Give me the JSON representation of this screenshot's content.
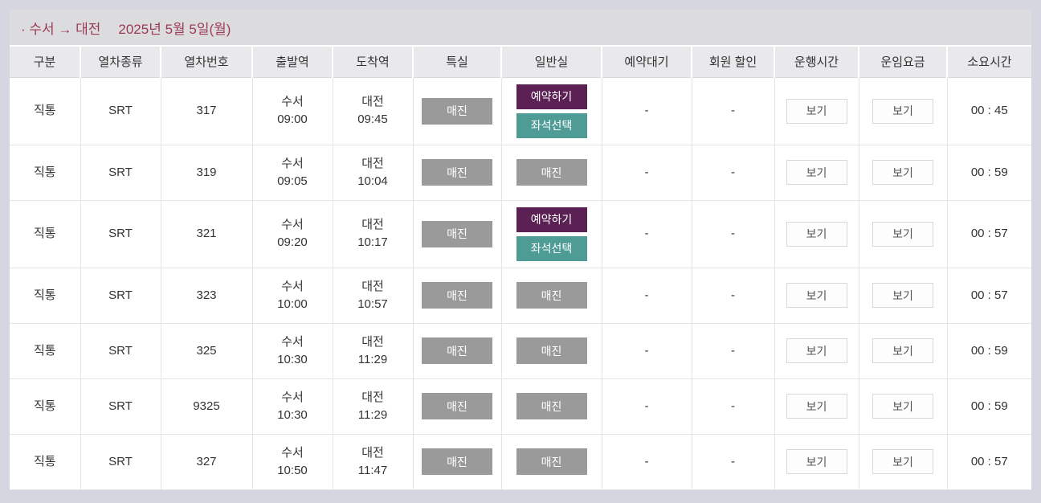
{
  "header": {
    "route": "· 수서 → 대전",
    "date": "2025년 5월 5일(월)"
  },
  "colors": {
    "title_text": "#9c3a56",
    "soldout_bg": "#9a9a9a",
    "reserve_bg": "#5c2154",
    "seat_select_bg": "#4f9b95",
    "page_bg": "#d5d6e0",
    "header_row_bg": "#e9e9ec"
  },
  "table": {
    "columns": [
      "구분",
      "열차종류",
      "열차번호",
      "출발역",
      "도착역",
      "특실",
      "일반실",
      "예약대기",
      "회원 할인",
      "운행시간",
      "운임요금",
      "소요시간"
    ],
    "buttons": {
      "soldout": "매진",
      "reserve": "예약하기",
      "seat_select": "좌석선택",
      "view": "보기"
    },
    "rows": [
      {
        "type": "직통",
        "train": "SRT",
        "number": "317",
        "dep_station": "수서",
        "dep_time": "09:00",
        "arr_station": "대전",
        "arr_time": "09:45",
        "special": [
          "soldout"
        ],
        "general": [
          "reserve",
          "seat_select"
        ],
        "wait": "-",
        "discount": "-",
        "duration": "00 : 45"
      },
      {
        "type": "직통",
        "train": "SRT",
        "number": "319",
        "dep_station": "수서",
        "dep_time": "09:05",
        "arr_station": "대전",
        "arr_time": "10:04",
        "special": [
          "soldout"
        ],
        "general": [
          "soldout"
        ],
        "wait": "-",
        "discount": "-",
        "duration": "00 : 59"
      },
      {
        "type": "직통",
        "train": "SRT",
        "number": "321",
        "dep_station": "수서",
        "dep_time": "09:20",
        "arr_station": "대전",
        "arr_time": "10:17",
        "special": [
          "soldout"
        ],
        "general": [
          "reserve",
          "seat_select"
        ],
        "wait": "-",
        "discount": "-",
        "duration": "00 : 57"
      },
      {
        "type": "직통",
        "train": "SRT",
        "number": "323",
        "dep_station": "수서",
        "dep_time": "10:00",
        "arr_station": "대전",
        "arr_time": "10:57",
        "special": [
          "soldout"
        ],
        "general": [
          "soldout"
        ],
        "wait": "-",
        "discount": "-",
        "duration": "00 : 57"
      },
      {
        "type": "직통",
        "train": "SRT",
        "number": "325",
        "dep_station": "수서",
        "dep_time": "10:30",
        "arr_station": "대전",
        "arr_time": "11:29",
        "special": [
          "soldout"
        ],
        "general": [
          "soldout"
        ],
        "wait": "-",
        "discount": "-",
        "duration": "00 : 59"
      },
      {
        "type": "직통",
        "train": "SRT",
        "number": "9325",
        "dep_station": "수서",
        "dep_time": "10:30",
        "arr_station": "대전",
        "arr_time": "11:29",
        "special": [
          "soldout"
        ],
        "general": [
          "soldout"
        ],
        "wait": "-",
        "discount": "-",
        "duration": "00 : 59"
      },
      {
        "type": "직통",
        "train": "SRT",
        "number": "327",
        "dep_station": "수서",
        "dep_time": "10:50",
        "arr_station": "대전",
        "arr_time": "11:47",
        "special": [
          "soldout"
        ],
        "general": [
          "soldout"
        ],
        "wait": "-",
        "discount": "-",
        "duration": "00 : 57"
      }
    ]
  }
}
